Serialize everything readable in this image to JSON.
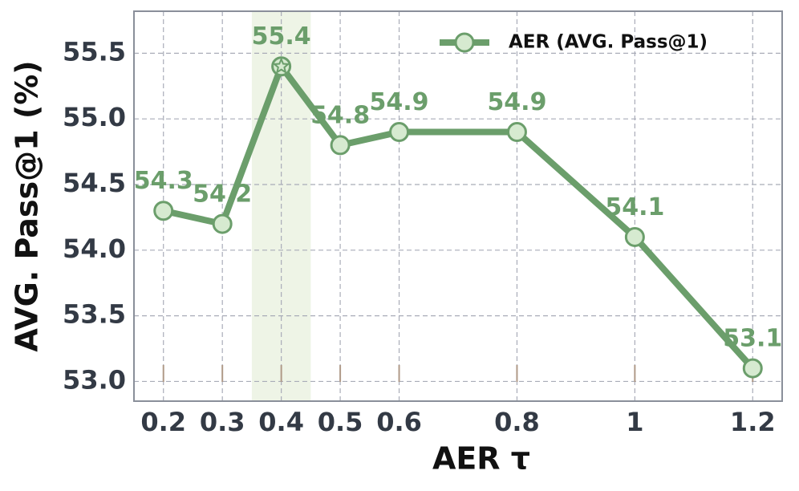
{
  "chart_data": {
    "type": "line",
    "xlabel": "AER τ",
    "ylabel": "AVG. Pass@1 (%)",
    "x": [
      0.2,
      0.3,
      0.4,
      0.5,
      0.6,
      0.8,
      1,
      1.2
    ],
    "series": [
      {
        "name": "AER (AVG. Pass@1)",
        "color": "#6b9e6b",
        "marker_fill": "#d6ead0",
        "values": [
          54.3,
          54.2,
          55.4,
          54.8,
          54.9,
          54.9,
          54.1,
          53.1
        ]
      }
    ],
    "xlim": [
      0.15,
      1.25
    ],
    "ylim": [
      52.85,
      55.82
    ],
    "xticks": [
      0.2,
      0.3,
      0.4,
      0.5,
      0.6,
      0.8,
      1,
      1.2
    ],
    "yticks": [
      {
        "value": 53.0,
        "label": "53.0"
      },
      53.5,
      {
        "value": 54.0,
        "label": "54.0"
      },
      54.5,
      {
        "value": 55.0,
        "label": "55.0"
      },
      55.5
    ],
    "highlight_x": [
      0.35,
      0.45
    ],
    "highlight_color": "#eef4e6",
    "grid": true,
    "legend": "upper right"
  }
}
